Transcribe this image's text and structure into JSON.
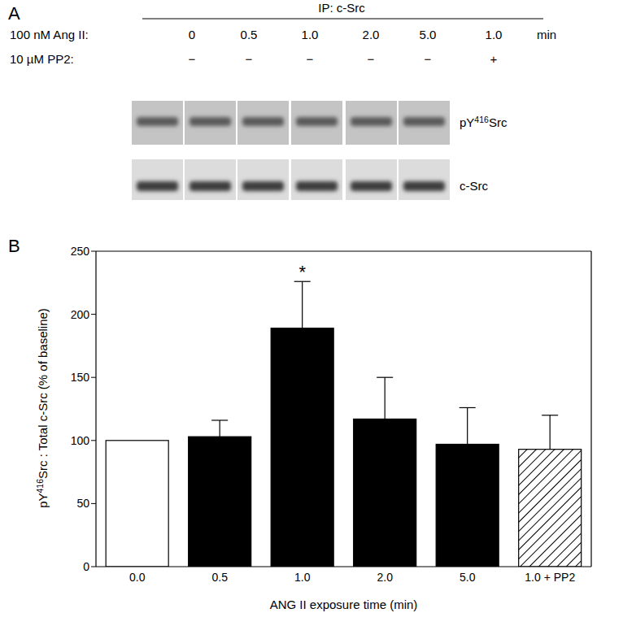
{
  "panel_a": {
    "label": "A",
    "header": "IP: c-Src",
    "rows": [
      {
        "label": "100 nM Ang II:",
        "values": [
          "0",
          "0.5",
          "1.0",
          "2.0",
          "5.0",
          "1.0"
        ],
        "unit": "min"
      },
      {
        "label": "10 µM PP2:",
        "values": [
          "−",
          "−",
          "−",
          "−",
          "−",
          "+"
        ]
      }
    ],
    "blots": [
      "pY416Src",
      "c-Src"
    ]
  },
  "panel_b_label": "B",
  "chart_data": {
    "type": "bar",
    "categories": [
      "0.0",
      "0.5",
      "1.0",
      "2.0",
      "5.0",
      "1.0 + PP2"
    ],
    "values": [
      100,
      103,
      189,
      117,
      97,
      93
    ],
    "errors": [
      null,
      13,
      37,
      33,
      29,
      27
    ],
    "colors": [
      "#ffffff",
      "#000000",
      "#000000",
      "#000000",
      "#000000",
      "#000000"
    ],
    "ylim": [
      0,
      250
    ],
    "yticks": [
      0,
      50,
      100,
      150,
      200,
      250
    ],
    "y_label": "pY416Src : Total c-Src (% of baseline)",
    "x_label": "ANG II exposure time (min)",
    "annotations": [
      {
        "category": "1.0",
        "text": "*"
      }
    ]
  }
}
